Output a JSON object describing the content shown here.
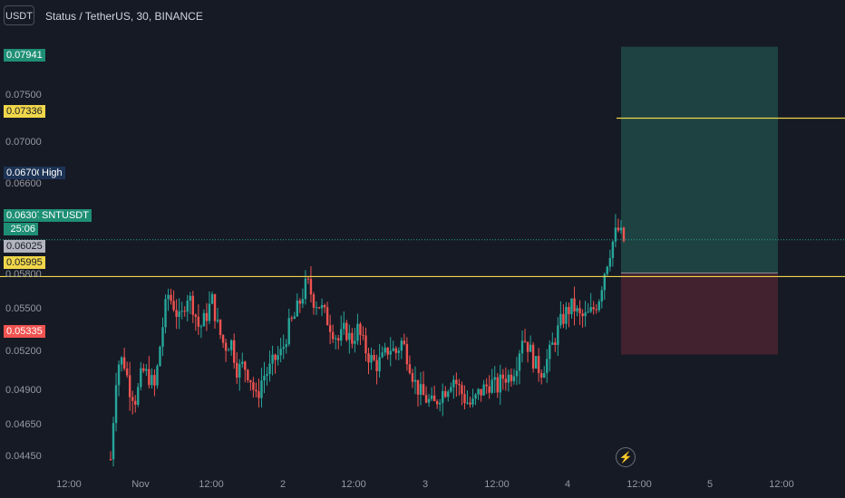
{
  "header": {
    "currency_button": "USDT",
    "title": "Status / TetherUS, 30, BINANCE"
  },
  "colors": {
    "background": "#161a25",
    "up": "#26a69a",
    "down": "#ef5350",
    "yellow_line": "#f0d64a",
    "profit_zone": "#1f4a46",
    "loss_zone": "#4a2530"
  },
  "chart_data": {
    "type": "candlestick",
    "symbol": "SNTUSDT",
    "interval": "30",
    "exchange": "BINANCE",
    "y_ticks": [
      "0.07500",
      "0.07000",
      "0.06600",
      "0.05800",
      "0.05500",
      "0.05200",
      "0.04900",
      "0.04650",
      "0.04450"
    ],
    "x_ticks": [
      "12:00",
      "Nov",
      "12:00",
      "2",
      "12:00",
      "3",
      "12:00",
      "4",
      "12:00",
      "5",
      "12:00"
    ],
    "ylim": [
      0.0432,
      0.0806
    ],
    "price_labels": {
      "target": "0.07941",
      "yellow_upper": "0.07336",
      "high": "0.06700",
      "high_text": "High",
      "last": "0.06307",
      "symbol_tag": "SNTUSDT",
      "countdown": "25:06",
      "entry": "0.06025",
      "yellow_lower": "0.05995",
      "stop": "0.05335"
    },
    "levels": {
      "yellow_upper": 0.07336,
      "yellow_lower": 0.05995,
      "last": 0.06307,
      "entry": 0.06025,
      "target": 0.07941,
      "stop": 0.05335
    },
    "position_tool": {
      "entry": 0.06025,
      "target": 0.07941,
      "stop": 0.05335
    },
    "price_path": [
      0.0445,
      0.0525,
      0.053,
      0.0505,
      0.0495,
      0.052,
      0.0515,
      0.0505,
      0.055,
      0.0585,
      0.0575,
      0.056,
      0.0585,
      0.0575,
      0.0555,
      0.0565,
      0.058,
      0.0555,
      0.054,
      0.0545,
      0.052,
      0.0525,
      0.0515,
      0.0495,
      0.0515,
      0.052,
      0.053,
      0.0535,
      0.0555,
      0.0565,
      0.058,
      0.0595,
      0.058,
      0.0575,
      0.0565,
      0.0555,
      0.0545,
      0.0555,
      0.0545,
      0.0555,
      0.054,
      0.053,
      0.0525,
      0.053,
      0.054,
      0.0535,
      0.0545,
      0.053,
      0.051,
      0.05,
      0.0495,
      0.049,
      0.05,
      0.0505,
      0.0515,
      0.0505,
      0.0495,
      0.049,
      0.05,
      0.0505,
      0.051,
      0.0505,
      0.0515,
      0.0515,
      0.0525,
      0.055,
      0.054,
      0.0525,
      0.052,
      0.053,
      0.0545,
      0.056,
      0.057,
      0.0575,
      0.0565,
      0.0565,
      0.057,
      0.058,
      0.0605,
      0.0625,
      0.064,
      0.063
    ]
  }
}
